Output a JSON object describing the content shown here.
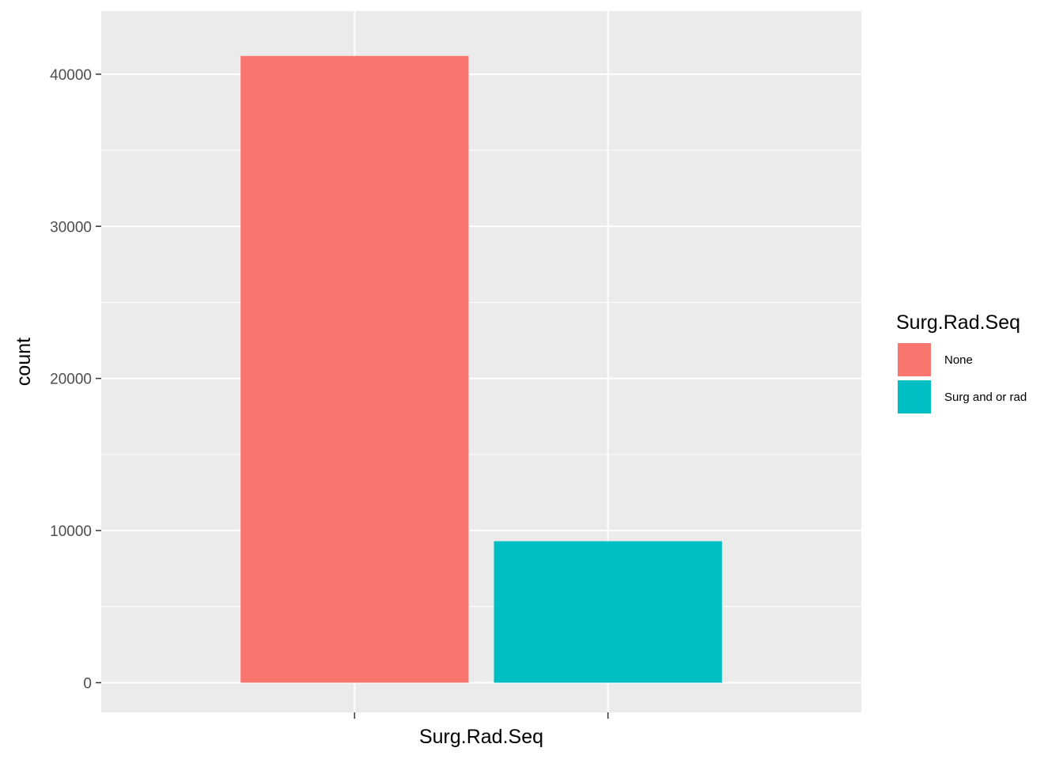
{
  "chart_data": {
    "type": "bar",
    "xlabel": "Surg.Rad.Seq",
    "ylabel": "count",
    "categories": [
      "None",
      "Surg and or rad"
    ],
    "x_tick_labels": [
      "",
      ""
    ],
    "values": [
      41200,
      9300
    ],
    "ylim": [
      -1950,
      44150
    ],
    "yticks": [
      0,
      10000,
      20000,
      30000,
      40000
    ],
    "ytick_labels": [
      "0",
      "10000",
      "20000",
      "30000",
      "40000"
    ],
    "grid": true,
    "legend": {
      "title": "Surg.Rad.Seq",
      "position": "right",
      "entries": [
        "None",
        "Surg and or rad"
      ]
    },
    "colors": {
      "None": "#F8766D",
      "Surg and or rad": "#00BFC4",
      "panel_background": "#EBEBEB",
      "grid_line": "#FFFFFF"
    }
  }
}
